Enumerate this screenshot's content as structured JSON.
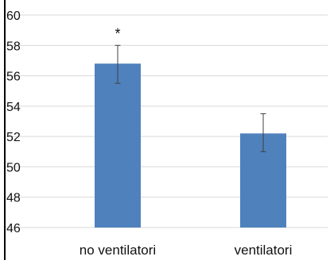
{
  "chart_data": {
    "type": "bar",
    "title": "",
    "xlabel": "",
    "ylabel": "",
    "categories": [
      "no ventilatori",
      "ventilatori"
    ],
    "values": [
      56.8,
      52.2
    ],
    "error_bars": [
      {
        "low": 55.5,
        "high": 58.0
      },
      {
        "low": 51.0,
        "high": 53.5
      }
    ],
    "annotations": [
      {
        "category": "no ventilatori",
        "text": "*"
      }
    ],
    "ylim": [
      46,
      60
    ],
    "yticks": [
      "46",
      "48",
      "50",
      "52",
      "54",
      "56",
      "58",
      "60"
    ],
    "grid": true,
    "legend": "none",
    "colors": {
      "bar": "#4f81bd",
      "grid": "#d9d9d9",
      "axis": "#000000",
      "error": "#404040"
    }
  }
}
